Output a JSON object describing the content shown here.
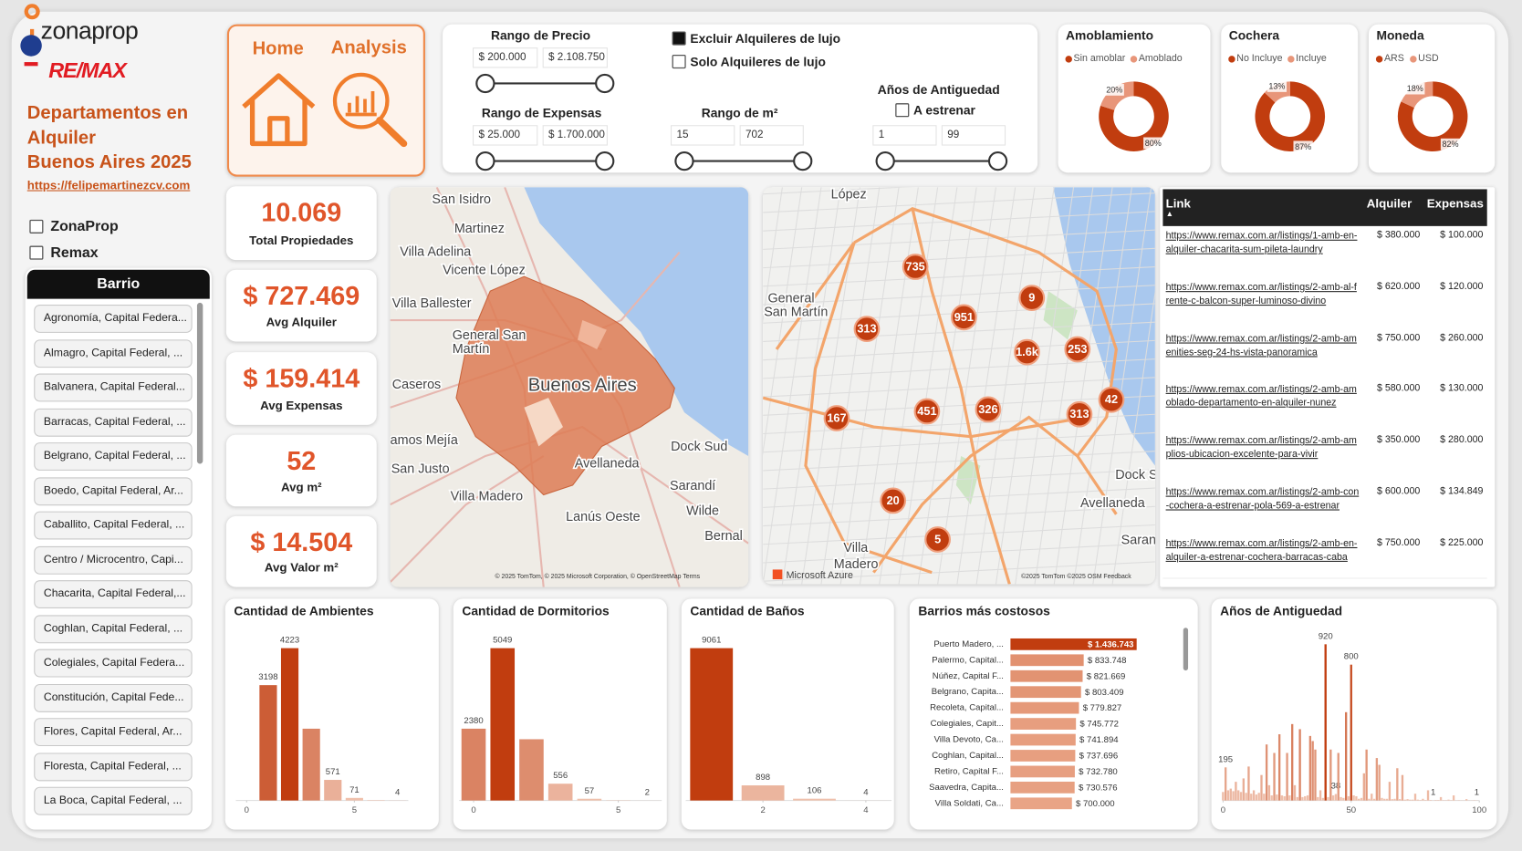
{
  "header": {
    "brand1": "zonaprop",
    "brand2": "RE/MAX",
    "title_lines": [
      "Departamentos en",
      "Alquiler",
      "Buenos Aires 2025"
    ],
    "link": "https://felipemartinezcv.com"
  },
  "sources": [
    {
      "label": "ZonaProp",
      "checked": false
    },
    {
      "label": "Remax",
      "checked": false
    }
  ],
  "slicer": {
    "title": "Barrio",
    "items": [
      "Agronomía, Capital Federa...",
      "Almagro, Capital Federal, ...",
      "Balvanera, Capital Federal...",
      "Barracas, Capital Federal, ...",
      "Belgrano, Capital Federal, ...",
      "Boedo, Capital Federal, Ar...",
      "Caballito, Capital Federal, ...",
      "Centro / Microcentro, Capi...",
      "Chacarita, Capital Federal,...",
      "Coghlan, Capital Federal, ...",
      "Colegiales, Capital Federa...",
      "Constitución, Capital Fede...",
      "Flores, Capital Federal, Ar...",
      "Floresta, Capital Federal, ...",
      "La Boca, Capital Federal, ..."
    ]
  },
  "nav": [
    "Home",
    "Analysis"
  ],
  "filters": {
    "price": {
      "label": "Rango de Precio",
      "min": "$ 200.000",
      "max": "$ 2.108.750"
    },
    "expensas": {
      "label": "Rango de Expensas",
      "min": "$ 25.000",
      "max": "$ 1.700.000"
    },
    "luxury": [
      {
        "label": "Excluir Alquileres de lujo",
        "checked": true
      },
      {
        "label": "Solo Alquileres de lujo",
        "checked": false
      }
    ],
    "m2": {
      "label": "Rango de m²",
      "min": "15",
      "max": "702"
    },
    "antiguedad": {
      "label": "Años de Antiguedad",
      "option": "A estrenar",
      "option_checked": false,
      "min": "1",
      "max": "99"
    }
  },
  "kpis": [
    {
      "value": "10.069",
      "label": "Total Propiedades"
    },
    {
      "value": "$ 727.469",
      "label": "Avg Alquiler"
    },
    {
      "value": "$ 159.414",
      "label": "Avg Expensas"
    },
    {
      "value": "52",
      "label": "Avg m²"
    },
    {
      "value": "$ 14.504",
      "label": "Avg Valor m²"
    }
  ],
  "maps": [
    {
      "labels": [
        "San Isidro",
        "Martinez",
        "Villa Adelina",
        "Vicente López",
        "Villa Ballester",
        "General San",
        "Martín",
        "Caseros",
        "Buenos Aires",
        "amos Mejía",
        "San Justo",
        "Dock Sud",
        "Avellaneda",
        "Sarandí",
        "Villa Madero",
        "Wilde",
        "Lanús Oeste",
        "Bernal"
      ],
      "attribution": "© 2025 TomTom, © 2025 Microsoft Corporation, © OpenStreetMap  Terms"
    },
    {
      "labels": [
        "López",
        "General",
        "San Martín",
        "Dock Su",
        "Avellaneda",
        "Villa",
        "Madero",
        "Sarand"
      ],
      "clusters": [
        "735",
        "9",
        "313",
        "951",
        "1.6k",
        "253",
        "42",
        "313",
        "167",
        "451",
        "326",
        "20",
        "5"
      ],
      "brand": "Microsoft Azure",
      "attribution": "©2025 TomTom ©2025 OSM  Feedback"
    }
  ],
  "table": {
    "columns": [
      "Link",
      "Alquiler",
      "Expensas"
    ],
    "rows": [
      [
        "https://www.remax.com.ar/listings/1-amb-en-alquiler-chacarita-sum-pileta-laundry",
        "$ 380.000",
        "$ 100.000"
      ],
      [
        "https://www.remax.com.ar/listings/2-amb-al-frente-c-balcon-super-luminoso-divino",
        "$ 620.000",
        "$ 120.000"
      ],
      [
        "https://www.remax.com.ar/listings/2-amb-amenities-seg-24-hs-vista-panoramica",
        "$ 750.000",
        "$ 260.000"
      ],
      [
        "https://www.remax.com.ar/listings/2-amb-amoblado-departamento-en-alquiler-nunez",
        "$ 580.000",
        "$ 130.000"
      ],
      [
        "https://www.remax.com.ar/listings/2-amb-amplios-ubicacion-excelente-para-vivir",
        "$ 350.000",
        "$ 280.000"
      ],
      [
        "https://www.remax.com.ar/listings/2-amb-con-cochera-a-estrenar-pola-569-a-estrenar",
        "$ 600.000",
        "$ 134.849"
      ],
      [
        "https://www.remax.com.ar/listings/2-amb-en-alquiler-a-estrenar-cochera-barracas-caba",
        "$ 750.000",
        "$ 225.000"
      ]
    ]
  },
  "chart_data": [
    {
      "type": "donut",
      "title": "Amoblamiento",
      "categories": [
        "Sin amoblar",
        "Amoblado"
      ],
      "values": [
        80,
        20
      ],
      "value_labels": [
        "80%",
        "20%"
      ],
      "colors": [
        "#c13d0f",
        "#e8967a"
      ]
    },
    {
      "type": "donut",
      "title": "Cochera",
      "categories": [
        "No Incluye",
        "Incluye"
      ],
      "values": [
        87,
        13
      ],
      "value_labels": [
        "87%",
        "13%"
      ],
      "colors": [
        "#c13d0f",
        "#e8967a"
      ]
    },
    {
      "type": "donut",
      "title": "Moneda",
      "categories": [
        "ARS",
        "USD"
      ],
      "values": [
        82,
        18
      ],
      "value_labels": [
        "82%",
        "18%"
      ],
      "colors": [
        "#c13d0f",
        "#e8967a"
      ]
    },
    {
      "type": "bar",
      "title": "Cantidad de Ambientes",
      "x": [
        1,
        2,
        3,
        4,
        5,
        6,
        7
      ],
      "values": [
        3198,
        4223,
        1990,
        571,
        71,
        12,
        4
      ],
      "value_labels": [
        "3198",
        "4223",
        null,
        "571",
        "71",
        null,
        "4"
      ],
      "xlim": [
        -0.5,
        7.5
      ],
      "xticks": [
        0,
        5
      ],
      "color_scale": [
        "#f0c2ae",
        "#c13d0f"
      ]
    },
    {
      "type": "bar",
      "title": "Cantidad de Dormitorios",
      "x": [
        0,
        1,
        2,
        3,
        4,
        5,
        6
      ],
      "values": [
        2380,
        5049,
        2030,
        556,
        57,
        8,
        2
      ],
      "value_labels": [
        "2380",
        "5049",
        null,
        "556",
        "57",
        null,
        "2"
      ],
      "xlim": [
        -0.5,
        6.5
      ],
      "xticks": [
        0,
        5
      ],
      "color_scale": [
        "#f0c2ae",
        "#c13d0f"
      ]
    },
    {
      "type": "bar",
      "title": "Cantidad de Baños",
      "x": [
        1,
        2,
        3,
        4
      ],
      "values": [
        9061,
        898,
        106,
        4
      ],
      "xlim": [
        0.5,
        4.5
      ],
      "xticks": [
        2,
        4
      ],
      "color_scale": [
        "#f0c2ae",
        "#c13d0f"
      ]
    },
    {
      "type": "barh",
      "title": "Barrios más costosos",
      "categories": [
        "Puerto Madero, ...",
        "Palermo, Capital...",
        "Núñez, Capital F...",
        "Belgrano, Capita...",
        "Recoleta, Capital...",
        "Colegiales, Capit...",
        "Villa Devoto, Ca...",
        "Coghlan, Capital...",
        "Retiro, Capital F...",
        "Saavedra, Capita...",
        "Villa Soldati, Ca..."
      ],
      "values": [
        1436743,
        833748,
        821669,
        803409,
        779827,
        745772,
        741894,
        737696,
        732780,
        730576,
        700000
      ],
      "value_labels": [
        "$ 1.436.743",
        "$ 833.748",
        "$ 821.669",
        "$ 803.409",
        "$ 779.827",
        "$ 745.772",
        "$ 741.894",
        "$ 737.696",
        "$ 732.780",
        "$ 730.576",
        "$ 700.000"
      ],
      "color_scale": [
        "#e9a486",
        "#c13d0f"
      ]
    },
    {
      "type": "bar",
      "title": "Años de Antiguedad",
      "x": [
        0,
        1,
        2,
        3,
        4,
        5,
        6,
        7,
        8,
        9,
        10,
        11,
        12,
        13,
        14,
        15,
        16,
        17,
        18,
        19,
        20,
        21,
        22,
        23,
        24,
        25,
        26,
        27,
        28,
        29,
        30,
        31,
        32,
        33,
        34,
        35,
        36,
        37,
        38,
        39,
        40,
        41,
        42,
        43,
        44,
        45,
        46,
        47,
        48,
        49,
        50,
        51,
        52,
        53,
        54,
        55,
        56,
        57,
        58,
        59,
        60,
        61,
        62,
        63,
        64,
        65,
        66,
        67,
        68,
        69,
        70,
        71,
        72,
        73,
        74,
        75,
        76,
        77,
        78,
        79,
        80,
        81,
        82,
        83,
        84,
        85,
        86,
        87,
        88,
        89,
        90,
        91,
        92,
        93,
        94,
        95,
        96,
        97,
        98,
        99
      ],
      "values": [
        50,
        195,
        60,
        70,
        55,
        110,
        60,
        50,
        130,
        45,
        200,
        40,
        60,
        35,
        45,
        150,
        40,
        330,
        90,
        30,
        280,
        35,
        390,
        30,
        25,
        280,
        30,
        450,
        90,
        20,
        420,
        20,
        25,
        30,
        380,
        350,
        300,
        20,
        60,
        15,
        920,
        20,
        300,
        30,
        38,
        280,
        20,
        15,
        520,
        25,
        800,
        30,
        25,
        10,
        15,
        160,
        300,
        10,
        40,
        10,
        250,
        210,
        15,
        10,
        10,
        110,
        8,
        10,
        190,
        8,
        150,
        5,
        8,
        5,
        5,
        40,
        5,
        3,
        10,
        3,
        60,
        3,
        1,
        3,
        3,
        20,
        2,
        2,
        5,
        2,
        30,
        1,
        2,
        1,
        1,
        8,
        1,
        1,
        2,
        1
      ],
      "value_labels": [
        null,
        "195",
        null,
        null,
        null,
        null,
        null,
        null,
        null,
        null,
        null,
        null,
        null,
        null,
        null,
        null,
        null,
        null,
        null,
        null,
        null,
        null,
        null,
        null,
        null,
        null,
        null,
        null,
        null,
        null,
        null,
        null,
        null,
        null,
        null,
        null,
        null,
        null,
        null,
        null,
        "920",
        null,
        null,
        null,
        "38",
        null,
        null,
        null,
        null,
        null,
        "800",
        null,
        null,
        null,
        null,
        null,
        null,
        null,
        null,
        null,
        null,
        null,
        null,
        null,
        null,
        null,
        null,
        null,
        null,
        null,
        null,
        null,
        null,
        null,
        null,
        null,
        null,
        null,
        null,
        null,
        null,
        null,
        "1",
        null,
        null,
        null,
        null,
        null,
        null,
        null,
        null,
        null,
        null,
        null,
        null,
        null,
        null,
        null,
        null,
        "1"
      ],
      "xlim": [
        0,
        100
      ],
      "xticks": [
        0,
        50,
        100
      ],
      "color_scale": [
        "#f0c2ae",
        "#c13d0f"
      ]
    }
  ]
}
